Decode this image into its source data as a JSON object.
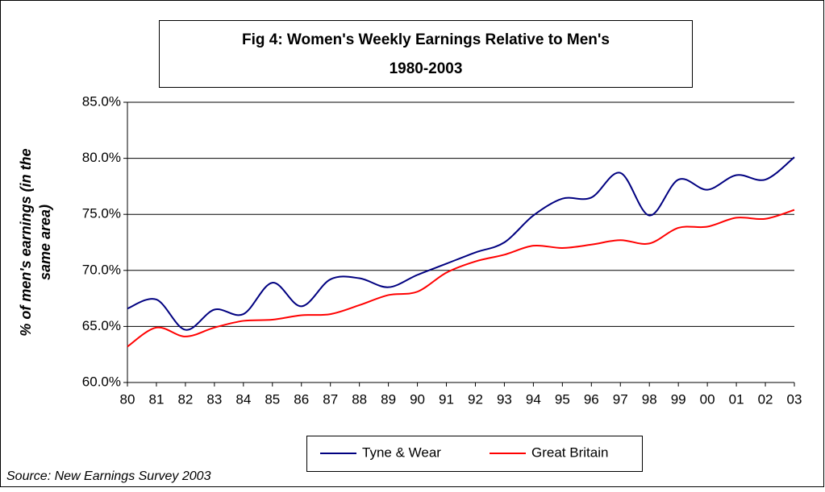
{
  "chart_data": {
    "type": "line",
    "title": "Fig 4: Women's Weekly Earnings Relative to Men's",
    "subtitle": "1980-2003",
    "y_label": [
      "% of men's earnings (in the",
      "same area)"
    ],
    "source": "Source: New Earnings Survey 2003",
    "categories": [
      "80",
      "81",
      "82",
      "83",
      "84",
      "85",
      "86",
      "87",
      "88",
      "89",
      "90",
      "91",
      "92",
      "93",
      "94",
      "95",
      "96",
      "97",
      "98",
      "99",
      "00",
      "01",
      "02",
      "03"
    ],
    "series": [
      {
        "name": "Tyne & Wear",
        "color": "#000080",
        "values": [
          66.6,
          67.4,
          64.7,
          66.5,
          66.1,
          68.9,
          66.8,
          69.2,
          69.3,
          68.5,
          69.6,
          70.6,
          71.6,
          72.5,
          74.9,
          76.4,
          76.5,
          78.7,
          74.9,
          78.1,
          77.2,
          78.5,
          78.1,
          80.1
        ]
      },
      {
        "name": "Great Britain",
        "color": "#ff0000",
        "values": [
          63.2,
          64.9,
          64.1,
          64.9,
          65.5,
          65.6,
          66.0,
          66.1,
          66.9,
          67.8,
          68.1,
          69.8,
          70.8,
          71.4,
          72.2,
          72.0,
          72.3,
          72.7,
          72.4,
          73.8,
          73.9,
          74.7,
          74.6,
          75.4
        ]
      }
    ],
    "ylim": [
      60,
      85
    ],
    "yticks": [
      {
        "value": 60,
        "label": "60.0%"
      },
      {
        "value": 65,
        "label": "65.0%"
      },
      {
        "value": 70,
        "label": "70.0%"
      },
      {
        "value": 75,
        "label": "75.0%"
      },
      {
        "value": 80,
        "label": "80.0%"
      },
      {
        "value": 85,
        "label": "85.0%"
      }
    ],
    "grid": true
  }
}
